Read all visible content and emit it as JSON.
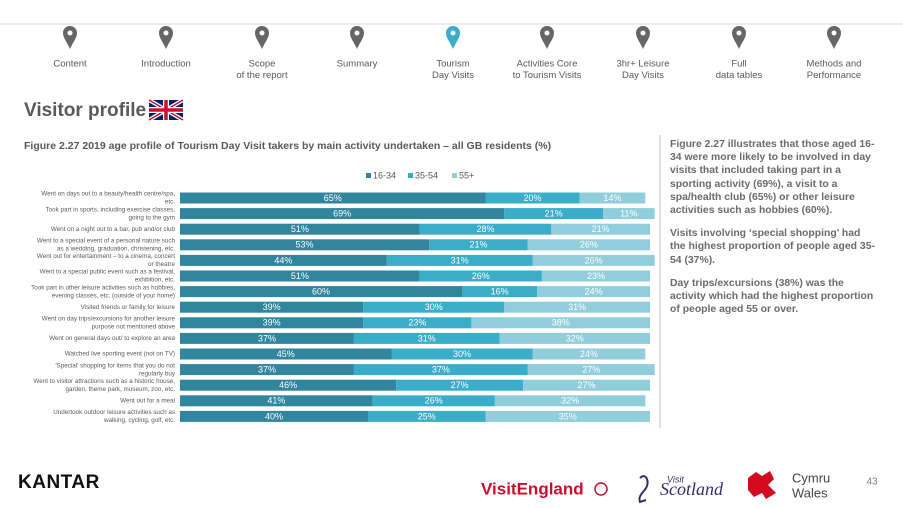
{
  "nav": [
    {
      "lines": [
        "Content"
      ]
    },
    {
      "lines": [
        "Introduction"
      ]
    },
    {
      "lines": [
        "Scope",
        "of the report"
      ]
    },
    {
      "lines": [
        "Summary"
      ]
    },
    {
      "lines": [
        "Tourism",
        "Day Visits"
      ],
      "active": true
    },
    {
      "lines": [
        "Activities Core",
        "to Tourism Visits"
      ]
    },
    {
      "lines": [
        "3hr+ Leisure",
        "Day Visits"
      ]
    },
    {
      "lines": [
        "Full",
        "data tables"
      ]
    },
    {
      "lines": [
        "Methods and",
        "Performance"
      ]
    }
  ],
  "heading": "Visitor profile",
  "chart_data": {
    "type": "stacked-bar-horizontal",
    "title": "Figure 2.27   2019 age profile of Tourism Day Visit takers by main activity undertaken – all GB residents (%)",
    "categories": [
      [
        "Went on days out to a beauty/health centre/spa,",
        "etc."
      ],
      [
        "Took part in sports, including exercise classes,",
        "going to the gym"
      ],
      [
        "Went on a night out to a bar, pub and/or club"
      ],
      [
        "Went to a special event of a personal nature such",
        "as a wedding, graduation, christening, etc."
      ],
      [
        "Went out for entertainment – to a cinema, concert",
        "or theatre"
      ],
      [
        "Went to a special public event such as a festival,",
        "exhibition, etc."
      ],
      [
        "Took part in other leisure activities such as hobbies,",
        "evening classes, etc. (outside of your home)"
      ],
      [
        "Visited friends or family for leisure"
      ],
      [
        "Went on day trips/excursions for another leisure",
        "purpose not mentioned above"
      ],
      [
        "Went on general days out/ to explore an area"
      ],
      [
        "Watched live sporting event (not on TV)"
      ],
      [
        "'Special' shopping for items that you do not",
        "regularly buy"
      ],
      [
        "Went to visitor attractions such as a historic house,",
        "garden, theme park, museum, zoo, etc."
      ],
      [
        "Went out for a meal"
      ],
      [
        "Undertook outdoor leisure activities such as",
        "walking, cycling, golf, etc."
      ]
    ],
    "series": [
      {
        "name": "16-34",
        "color": "#31859c",
        "values": [
          65,
          69,
          51,
          53,
          44,
          51,
          60,
          39,
          39,
          37,
          45,
          37,
          46,
          41,
          40
        ],
        "value_labels": [
          "65%",
          "69%",
          "51%",
          "53%",
          "44%",
          "51%",
          "60%",
          "39%",
          "39%",
          "37%",
          "45%",
          "37%",
          "46%",
          "41%",
          "40%"
        ]
      },
      {
        "name": "35-54",
        "color": "#3aadc9",
        "values": [
          20,
          21,
          28,
          21,
          31,
          26,
          16,
          30,
          23,
          31,
          30,
          37,
          27,
          26,
          25
        ],
        "value_labels": [
          "20%",
          "21%",
          "28%",
          "21%",
          "31%",
          "26%",
          "16%",
          "30%",
          "23%",
          "31%",
          "30%",
          "37%",
          "27%",
          "26%",
          "25%"
        ]
      },
      {
        "name": "55+",
        "color": "#92cddc",
        "values": [
          14,
          11,
          21,
          26,
          26,
          23,
          24,
          31,
          38,
          32,
          24,
          27,
          27,
          32,
          35
        ],
        "value_labels": [
          "14%",
          "11%",
          "21%",
          "26%",
          "26%",
          "23%",
          "24%",
          "31%",
          "38%",
          "32%",
          "24%",
          "27%",
          "27%",
          "32%",
          "35%"
        ]
      }
    ],
    "xlim": [
      0,
      100
    ],
    "legend": "top"
  },
  "side_text": [
    "Figure 2.27 illustrates that those aged 16-34 were more likely to be involved in day visits that included taking part in a sporting activity (69%), a visit to a spa/health club (65%) or other leisure activities such as hobbies (60%).",
    "Visits involving ‘special shopping’ had the highest proportion of people aged 35-54 (37%).",
    "Day trips/excursions (38%) was the activity which had the highest proportion of people aged 55 or over."
  ],
  "footer": {
    "kantar": "KANTAR",
    "visit_england": "VisitEngland",
    "visit": "Visit",
    "scotland": "Scotland",
    "cymru": "Cymru",
    "wales": "Wales",
    "page": "43"
  }
}
